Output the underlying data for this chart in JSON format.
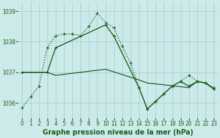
{
  "title": "Graphe pression niveau de la mer (hPa)",
  "bg_color": "#cceaea",
  "grid_color": "#aad4d4",
  "line_color": "#1a5c1a",
  "xlim": [
    -0.5,
    23.5
  ],
  "ylim": [
    1035.5,
    1039.3
  ],
  "yticks": [
    1036,
    1037,
    1038,
    1039
  ],
  "xticks": [
    0,
    1,
    2,
    3,
    4,
    5,
    6,
    7,
    8,
    9,
    10,
    11,
    12,
    13,
    14,
    15,
    16,
    17,
    18,
    19,
    20,
    21,
    22,
    23
  ],
  "series1_x": [
    0,
    1,
    2,
    3,
    4,
    5,
    6,
    7,
    8,
    9,
    10,
    11,
    12,
    13,
    14,
    15,
    16,
    17,
    18,
    19,
    20,
    21,
    22,
    23
  ],
  "series1_y": [
    1035.85,
    1036.2,
    1036.55,
    1037.8,
    1038.2,
    1038.25,
    1038.25,
    1038.2,
    1038.5,
    1038.93,
    1038.62,
    1038.45,
    1037.85,
    1037.3,
    1036.5,
    1035.8,
    1036.05,
    1036.3,
    1036.55,
    1036.7,
    1036.9,
    1036.7,
    1036.65,
    1036.5
  ],
  "series2_x": [
    0,
    3,
    4,
    10,
    11,
    14,
    15,
    16,
    17,
    18,
    19,
    20,
    21,
    22,
    23
  ],
  "series2_y": [
    1037.0,
    1037.0,
    1037.8,
    1038.55,
    1038.18,
    1036.5,
    1035.8,
    1036.05,
    1036.3,
    1036.55,
    1036.7,
    1036.55,
    1036.7,
    1036.65,
    1036.45
  ],
  "series3_x": [
    0,
    3,
    4,
    10,
    14,
    15,
    20,
    21,
    22,
    23
  ],
  "series3_y": [
    1037.0,
    1037.0,
    1036.9,
    1037.1,
    1036.75,
    1036.65,
    1036.5,
    1036.7,
    1036.65,
    1036.45
  ]
}
